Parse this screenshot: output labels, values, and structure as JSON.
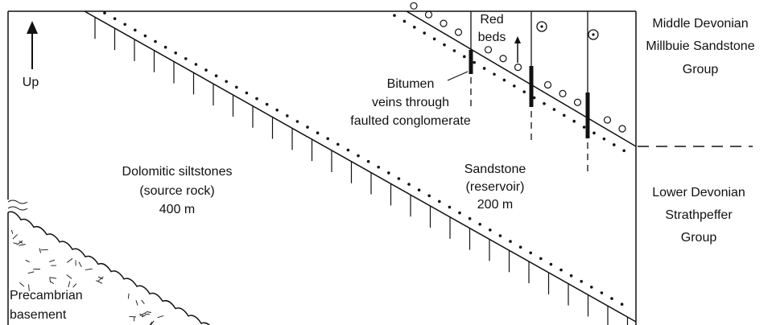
{
  "labels": {
    "up": [
      "Up"
    ],
    "red_beds": [
      "Red",
      "beds"
    ],
    "middle_devonian": [
      "Middle Devonian",
      "Millbuie Sandstone",
      "Group"
    ],
    "bitumen": [
      "Bitumen",
      "veins through",
      "faulted conglomerate"
    ],
    "dolomitic": [
      "Dolomitic siltstones",
      "(source rock)",
      "400 m"
    ],
    "sandstone": [
      "Sandstone",
      "(reservoir)",
      "200 m"
    ],
    "lower_devonian": [
      "Lower Devonian",
      "Strathpeffer",
      "Group"
    ],
    "precambrian": [
      "Precambrian",
      "basement"
    ]
  }
}
